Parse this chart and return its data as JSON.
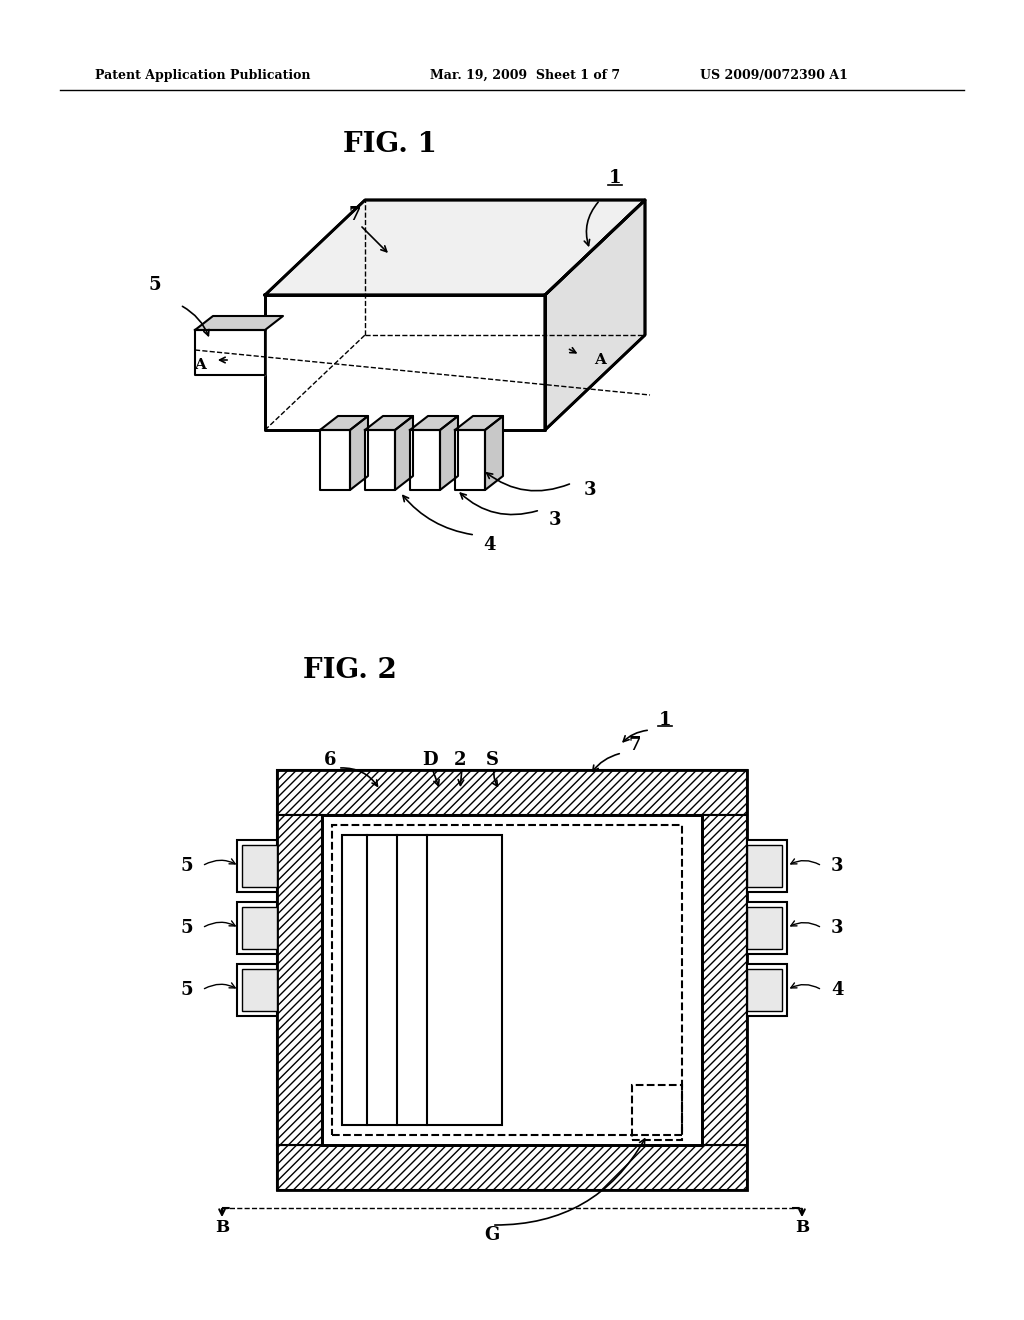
{
  "background_color": "#ffffff",
  "header_left": "Patent Application Publication",
  "header_center": "Mar. 19, 2009  Sheet 1 of 7",
  "header_right": "US 2009/0072390 A1",
  "fig1_title": "FIG. 1",
  "fig2_title": "FIG. 2"
}
